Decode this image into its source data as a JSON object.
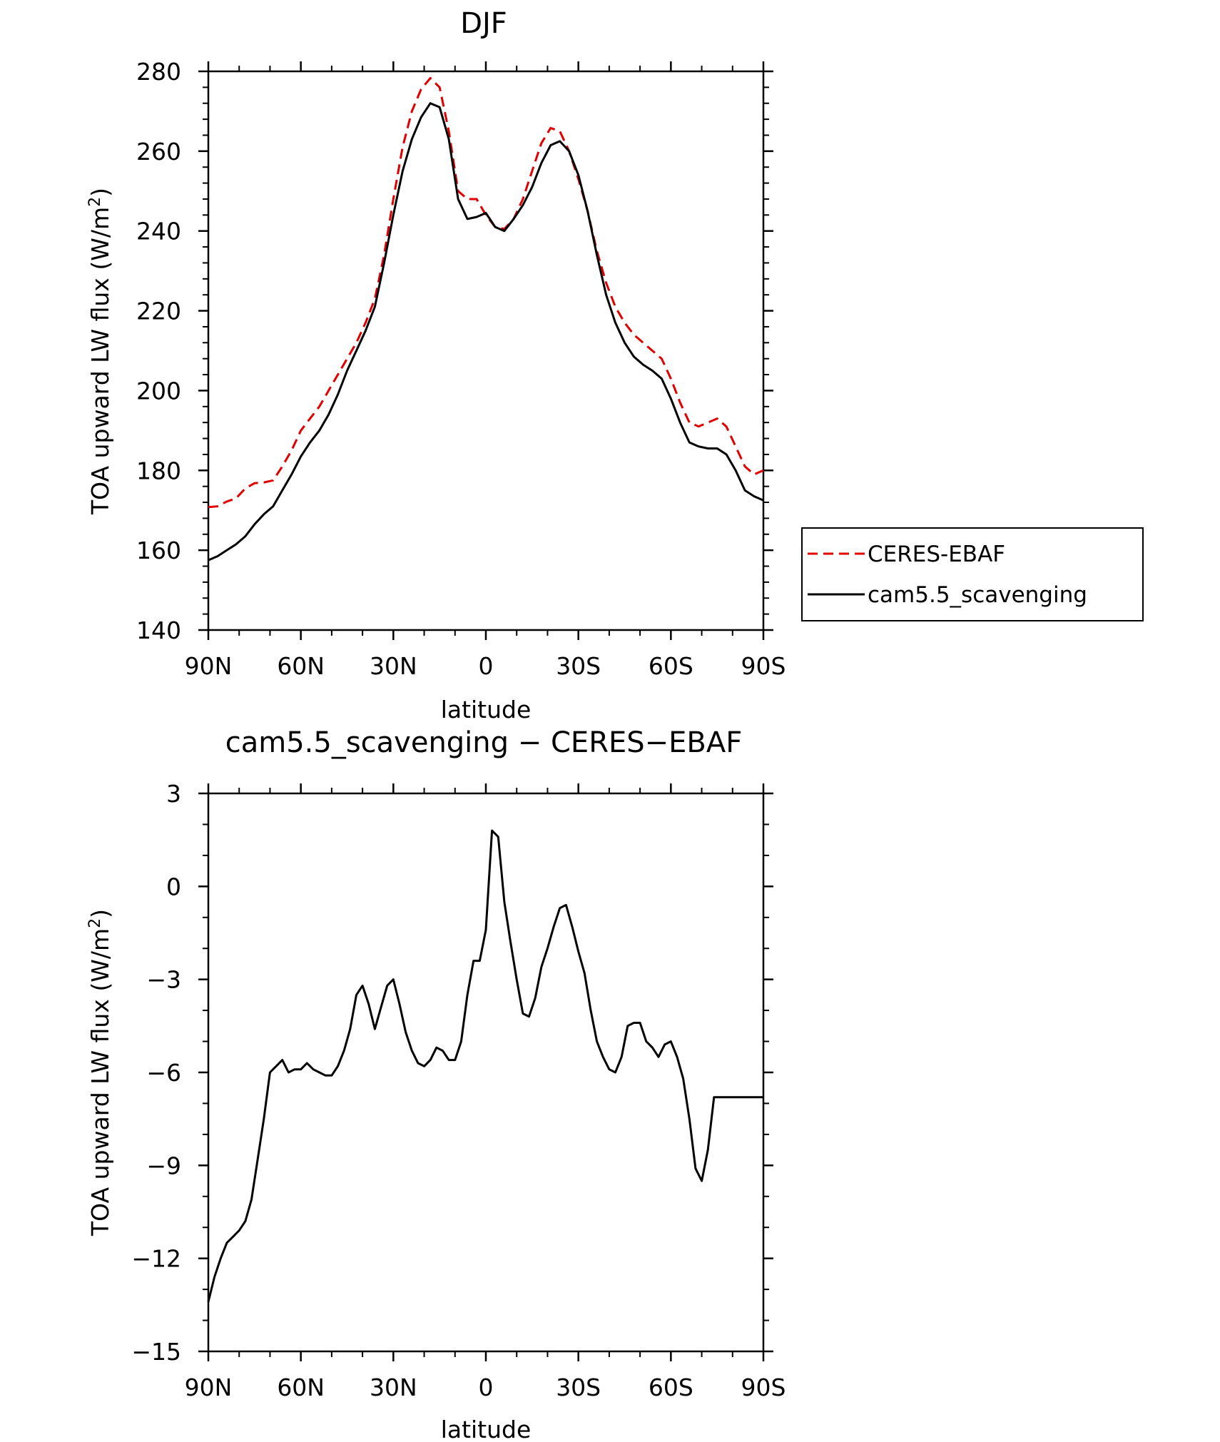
{
  "chart_data": [
    {
      "type": "line",
      "title": "DJF",
      "xlabel": "latitude",
      "ylabel": "TOA upward LW flux (W/m²)",
      "ylabel_main": "TOA upward LW flux (W/m",
      "ylabel_sup": "2",
      "ylabel_tail": ")",
      "ylim": [
        140,
        280
      ],
      "yticks": [
        140,
        160,
        180,
        200,
        220,
        240,
        260,
        280
      ],
      "ytick_labels": [
        "140",
        "160",
        "180",
        "200",
        "220",
        "240",
        "260",
        "280"
      ],
      "xlim": [
        90,
        -90
      ],
      "xticks": [
        90,
        60,
        30,
        0,
        -30,
        -60,
        -90
      ],
      "xtick_labels": [
        "90N",
        "60N",
        "30N",
        "0",
        "30S",
        "60S",
        "90S"
      ],
      "legend_position": "right",
      "series": [
        {
          "name": "CERES-EBAF",
          "color": "#e00000",
          "dash": "dashed",
          "x": [
            90,
            87,
            84,
            81,
            78,
            75,
            72,
            69,
            66,
            63,
            60,
            57,
            54,
            51,
            48,
            45,
            42,
            39,
            36,
            33,
            30,
            27,
            24,
            21,
            18,
            15,
            12,
            9,
            6,
            3,
            0,
            -3,
            -6,
            -9,
            -12,
            -15,
            -18,
            -21,
            -24,
            -27,
            -30,
            -33,
            -36,
            -39,
            -42,
            -45,
            -48,
            -51,
            -54,
            -57,
            -60,
            -63,
            -66,
            -69,
            -72,
            -75,
            -78,
            -81,
            -84,
            -87,
            -90
          ],
          "values": [
            170.8,
            171.0,
            172.2,
            173.0,
            175.5,
            176.8,
            177.0,
            177.5,
            181.0,
            185.0,
            190.0,
            193.0,
            196.0,
            200.0,
            204.0,
            208.0,
            212.0,
            217.0,
            223.0,
            234.0,
            248.0,
            261.0,
            270.0,
            275.5,
            278.3,
            276.0,
            265.0,
            250.0,
            248.0,
            248.0,
            244.0,
            241.0,
            240.5,
            243.0,
            248.0,
            255.0,
            262.0,
            265.8,
            265.0,
            260.0,
            253.0,
            245.0,
            235.0,
            227.0,
            221.0,
            217.0,
            214.0,
            212.0,
            210.0,
            208.0,
            203.0,
            197.0,
            192.0,
            191.0,
            192.0,
            193.0,
            191.0,
            186.0,
            181.0,
            179.0,
            180.0
          ]
        },
        {
          "name": "cam5.5_scavenging",
          "color": "#000000",
          "dash": "solid",
          "x": [
            90,
            87,
            84,
            81,
            78,
            75,
            72,
            69,
            66,
            63,
            60,
            57,
            54,
            51,
            48,
            45,
            42,
            39,
            36,
            33,
            30,
            27,
            24,
            21,
            18,
            15,
            12,
            9,
            6,
            3,
            0,
            -3,
            -6,
            -9,
            -12,
            -15,
            -18,
            -21,
            -24,
            -27,
            -30,
            -33,
            -36,
            -39,
            -42,
            -45,
            -48,
            -51,
            -54,
            -57,
            -60,
            -63,
            -66,
            -69,
            -72,
            -75,
            -78,
            -81,
            -84,
            -87,
            -90
          ],
          "values": [
            157.5,
            158.5,
            160.0,
            161.5,
            163.5,
            166.5,
            169.0,
            171.0,
            175.0,
            179.0,
            183.5,
            187.0,
            190.0,
            194.0,
            199.0,
            205.0,
            210.0,
            215.0,
            221.0,
            232.0,
            244.0,
            255.0,
            263.0,
            268.5,
            272.0,
            271.0,
            263.0,
            248.0,
            243.0,
            243.5,
            244.5,
            241.0,
            240.0,
            243.0,
            246.5,
            251.0,
            257.0,
            261.5,
            262.5,
            260.0,
            254.0,
            245.0,
            234.0,
            224.0,
            217.0,
            212.0,
            208.5,
            206.5,
            205.0,
            203.0,
            198.0,
            192.0,
            187.0,
            186.0,
            185.5,
            185.5,
            184.0,
            180.0,
            175.0,
            173.5,
            172.5
          ]
        }
      ]
    },
    {
      "type": "line",
      "title": "cam5.5_scavenging − CERES−EBAF",
      "xlabel": "latitude",
      "ylabel": "TOA upward LW flux (W/m²)",
      "ylabel_main": "TOA upward LW flux (W/m",
      "ylabel_sup": "2",
      "ylabel_tail": ")",
      "ylim": [
        -15,
        3
      ],
      "yticks": [
        -15,
        -12,
        -9,
        -6,
        -3,
        0,
        3
      ],
      "ytick_labels": [
        "−15",
        "−12",
        "−9",
        "−6",
        "−3",
        "0",
        "3"
      ],
      "xlim": [
        90,
        -90
      ],
      "xticks": [
        90,
        60,
        30,
        0,
        -30,
        -60,
        -90
      ],
      "xtick_labels": [
        "90N",
        "60N",
        "30N",
        "0",
        "30S",
        "60S",
        "90S"
      ],
      "series": [
        {
          "name": "cam5.5_scavenging − CERES-EBAF",
          "color": "#000000",
          "dash": "solid",
          "x": [
            90,
            88,
            86,
            84,
            82,
            80,
            78,
            76,
            74,
            72,
            70,
            68,
            66,
            64,
            62,
            60,
            58,
            56,
            54,
            52,
            50,
            48,
            46,
            44,
            42,
            40,
            38,
            36,
            34,
            32,
            30,
            28,
            26,
            24,
            22,
            20,
            18,
            16,
            14,
            12,
            10,
            8,
            6,
            4,
            2,
            0,
            -2,
            -4,
            -6,
            -8,
            -10,
            -12,
            -14,
            -16,
            -18,
            -20,
            -22,
            -24,
            -26,
            -28,
            -30,
            -32,
            -34,
            -36,
            -38,
            -40,
            -42,
            -44,
            -46,
            -48,
            -50,
            -52,
            -54,
            -56,
            -58,
            -60,
            -62,
            -64,
            -66,
            -68,
            -70,
            -72,
            -74,
            -76,
            -78,
            -80,
            -82,
            -84,
            -86,
            -88,
            -90
          ],
          "values": [
            -13.4,
            -12.6,
            -12.0,
            -11.5,
            -11.3,
            -11.1,
            -10.8,
            -10.1,
            -8.8,
            -7.5,
            -6.0,
            -5.8,
            -5.6,
            -6.0,
            -5.9,
            -5.9,
            -5.7,
            -5.9,
            -6.0,
            -6.1,
            -6.1,
            -5.8,
            -5.3,
            -4.6,
            -3.5,
            -3.2,
            -3.8,
            -4.6,
            -3.9,
            -3.2,
            -3.0,
            -3.8,
            -4.7,
            -5.3,
            -5.7,
            -5.8,
            -5.6,
            -5.2,
            -5.3,
            -5.6,
            -5.6,
            -5.0,
            -3.5,
            -2.4,
            -2.4,
            -1.4,
            1.8,
            1.6,
            -0.5,
            -1.8,
            -3.0,
            -4.1,
            -4.2,
            -3.6,
            -2.6,
            -2.0,
            -1.3,
            -0.7,
            -0.6,
            -1.3,
            -2.1,
            -2.8,
            -4.0,
            -5.0,
            -5.5,
            -5.9,
            -6.0,
            -5.5,
            -4.5,
            -4.4,
            -4.4,
            -5.0,
            -5.2,
            -5.5,
            -5.1,
            -5.0,
            -5.5,
            -6.2,
            -7.5,
            -9.1,
            -9.5,
            -8.5,
            -6.8,
            -6.8,
            -6.8,
            -6.8,
            -6.8,
            -6.8,
            -6.8,
            -6.8,
            -6.8
          ]
        }
      ]
    }
  ]
}
